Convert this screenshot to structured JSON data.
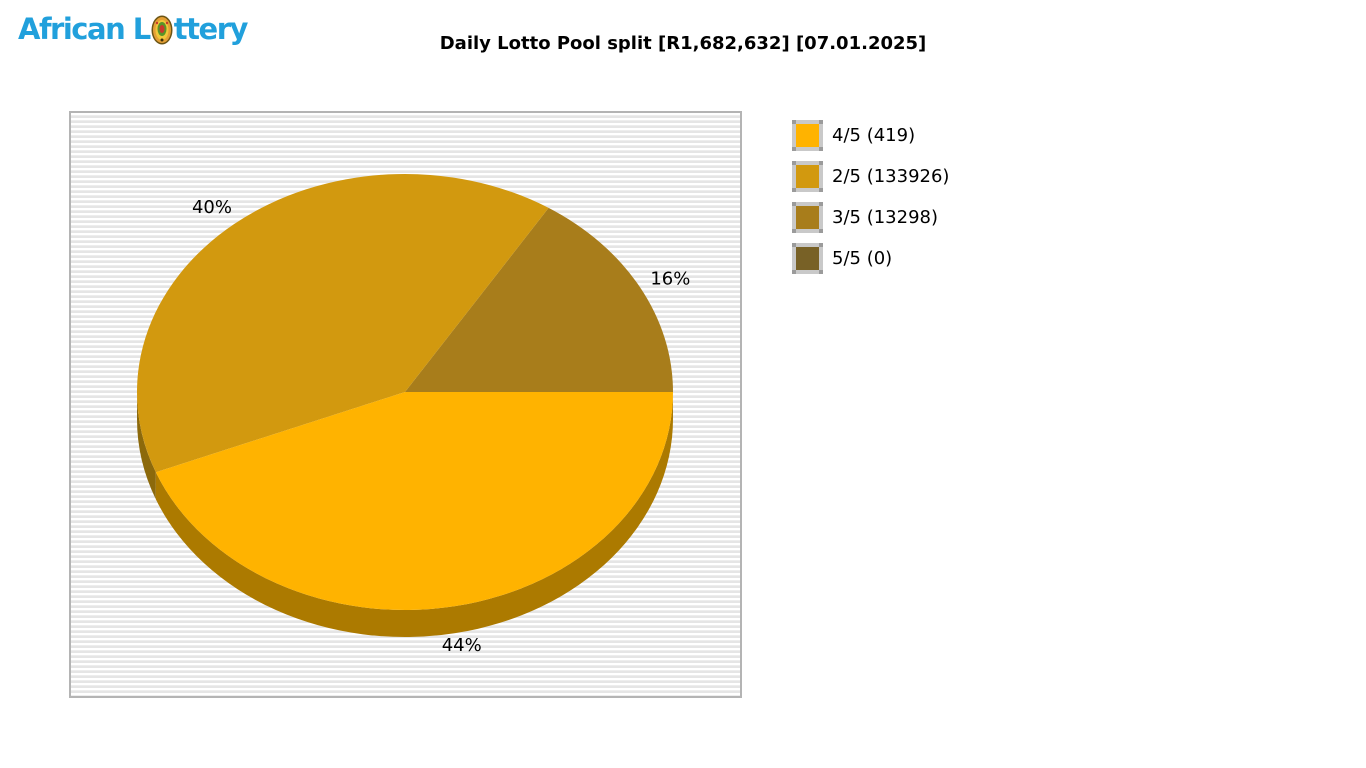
{
  "logo": {
    "text_before": "African L",
    "text_after": "ttery",
    "alt": "African Lottery",
    "color": "#21A0DC"
  },
  "header": {
    "title": "Daily Lotto Pool split [R1,682,632] [07.01.2025]"
  },
  "legend": {
    "items": [
      {
        "label": "4/5 (419)",
        "color": "#FFB300"
      },
      {
        "label": "2/5 (133926)",
        "color": "#D2990F"
      },
      {
        "label": "3/5 (13298)",
        "color": "#A87D1B"
      },
      {
        "label": "5/5 (0)",
        "color": "#786126"
      }
    ]
  },
  "chart_data": {
    "type": "pie",
    "style": "3d",
    "title": "Daily Lotto Pool split [R1,682,632] [07.01.2025]",
    "pool_total_label": "R1,682,632",
    "date_label": "07.01.2025",
    "slices": [
      {
        "label": "4/5",
        "count": 419,
        "percent": 44,
        "color": "#FFB300",
        "side_color": "#AC7A00"
      },
      {
        "label": "2/5",
        "count": 133926,
        "percent": 40,
        "color": "#D2990F",
        "side_color": "#8C690B"
      },
      {
        "label": "3/5",
        "count": 13298,
        "percent": 16,
        "color": "#A87D1B",
        "side_color": "#7A5B10"
      },
      {
        "label": "5/5",
        "count": 0,
        "percent": 0,
        "color": "#786126",
        "side_color": "#574718"
      }
    ],
    "arrangement": [
      "3/5",
      "2/5",
      "4/5"
    ],
    "start_angle_deg": 0,
    "legend_position": "right",
    "percent_label_suffix": "%"
  }
}
